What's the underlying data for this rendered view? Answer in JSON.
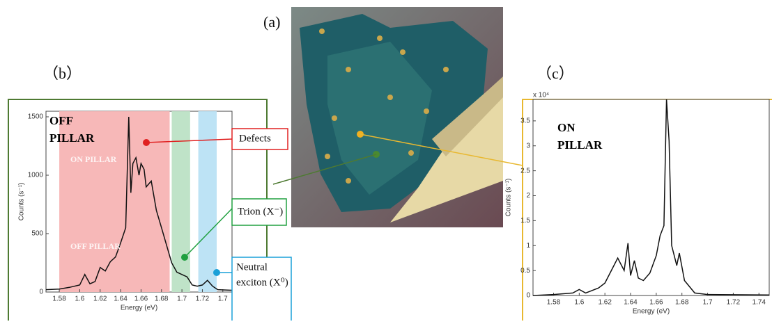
{
  "panels": {
    "a": "(a)",
    "b": "（b）",
    "c": "（c）"
  },
  "annotations": {
    "defects": "Defects",
    "trion": "Trion (X⁻)",
    "neutral": [
      "Neutral",
      "exciton (X⁰)"
    ]
  },
  "chart_data": [
    {
      "type": "line",
      "x_label": "Energy (eV)",
      "y_label": "Counts (s⁻¹)",
      "inset_title": [
        "OFF",
        "PILLAR"
      ],
      "overlay_labels": [
        "ON PILLAR",
        "OFF PILLAR"
      ],
      "bands": [
        {
          "x": [
            1.58,
            1.688
          ],
          "color": "#f7b8b8"
        },
        {
          "x": [
            1.69,
            1.708
          ],
          "color": "#bfe3c8"
        },
        {
          "x": [
            1.716,
            1.734
          ],
          "color": "#bde3f5"
        }
      ],
      "x": [
        1.567,
        1.58,
        1.59,
        1.6,
        1.605,
        1.61,
        1.615,
        1.62,
        1.625,
        1.63,
        1.635,
        1.64,
        1.645,
        1.648,
        1.65,
        1.652,
        1.655,
        1.658,
        1.66,
        1.663,
        1.665,
        1.67,
        1.675,
        1.68,
        1.685,
        1.69,
        1.695,
        1.7,
        1.705,
        1.71,
        1.715,
        1.72,
        1.725,
        1.73,
        1.735,
        1.749
      ],
      "values": [
        20,
        25,
        40,
        60,
        150,
        70,
        90,
        210,
        180,
        260,
        300,
        420,
        550,
        1500,
        850,
        1100,
        1150,
        1000,
        1100,
        1050,
        900,
        950,
        700,
        550,
        400,
        250,
        170,
        150,
        130,
        60,
        50,
        60,
        100,
        50,
        20,
        15
      ],
      "color": "#111111",
      "xlim": [
        1.567,
        1.749
      ],
      "xticks": [
        1.58,
        1.6,
        1.62,
        1.64,
        1.66,
        1.68,
        1.7,
        1.72,
        {
          "value": 1.74,
          "label": "1.7"
        }
      ],
      "ylim": [
        0,
        1500
      ],
      "yticks": [
        0,
        500,
        1000,
        1500
      ]
    },
    {
      "type": "line",
      "x_label": "Energy (eV)",
      "y_label": "Counts (s⁻¹)",
      "y_multiplier": "x 10⁴",
      "inset_title": [
        "ON",
        "PILLAR"
      ],
      "x": [
        1.564,
        1.58,
        1.595,
        1.6,
        1.605,
        1.615,
        1.62,
        1.625,
        1.63,
        1.635,
        1.638,
        1.64,
        1.643,
        1.646,
        1.65,
        1.655,
        1.66,
        1.663,
        1.666,
        1.668,
        1.67,
        1.672,
        1.676,
        1.678,
        1.682,
        1.69,
        1.7,
        1.748
      ],
      "values": [
        0,
        0.02,
        0.05,
        0.12,
        0.05,
        0.15,
        0.25,
        0.5,
        0.75,
        0.5,
        1.05,
        0.4,
        0.7,
        0.35,
        0.3,
        0.45,
        0.8,
        1.2,
        1.4,
        3.93,
        3.1,
        1.0,
        0.6,
        0.85,
        0.3,
        0.05,
        0.02,
        0.01
      ],
      "color": "#111111",
      "xlim": [
        1.564,
        1.748
      ],
      "xticks": [
        1.58,
        1.6,
        1.62,
        1.64,
        1.66,
        1.68,
        1.7,
        1.72,
        1.74
      ],
      "ylim": [
        0,
        3.93
      ],
      "yticks": [
        0,
        0.5,
        1,
        1.5,
        2,
        2.5,
        3,
        3.5
      ]
    }
  ]
}
